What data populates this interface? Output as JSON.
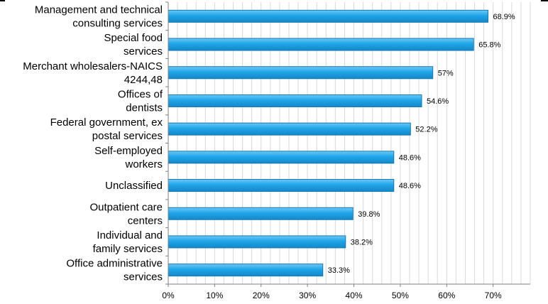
{
  "chart_data": {
    "type": "bar",
    "orientation": "horizontal",
    "categories": [
      [
        "Management and technical",
        "consulting services"
      ],
      [
        "Special food",
        "services"
      ],
      [
        "Merchant wholesalers-NAICS",
        "4244,48"
      ],
      [
        "Offices of",
        "dentists"
      ],
      [
        "Federal government, ex",
        "postal services"
      ],
      [
        "Self-employed",
        "workers"
      ],
      [
        "Unclassified"
      ],
      [
        "Outpatient care",
        "centers"
      ],
      [
        "Individual and",
        "family services"
      ],
      [
        "Office administrative",
        "services"
      ]
    ],
    "values": [
      68.9,
      65.8,
      57,
      54.6,
      52.2,
      48.6,
      48.6,
      39.8,
      38.2,
      33.3
    ],
    "value_labels": [
      "68.9%",
      "65.8%",
      "57%",
      "54.6%",
      "52.2%",
      "48.6%",
      "48.6%",
      "39.8%",
      "38.2%",
      "33.3%"
    ],
    "x_ticks": [
      0,
      10,
      20,
      30,
      40,
      50,
      60,
      70
    ],
    "x_tick_labels": [
      "0%",
      "10%",
      "20%",
      "30%",
      "40%",
      "50%",
      "60%",
      "70%"
    ],
    "xlim": [
      0,
      78
    ],
    "title": "",
    "xlabel": "",
    "ylabel": "",
    "grid": "vertical",
    "legend": "none",
    "colors": {
      "bar_fill": "#1ea3e6",
      "bar_stroke": "#1478b0",
      "grid": "#d9d9d9",
      "axis": "#808080"
    }
  }
}
